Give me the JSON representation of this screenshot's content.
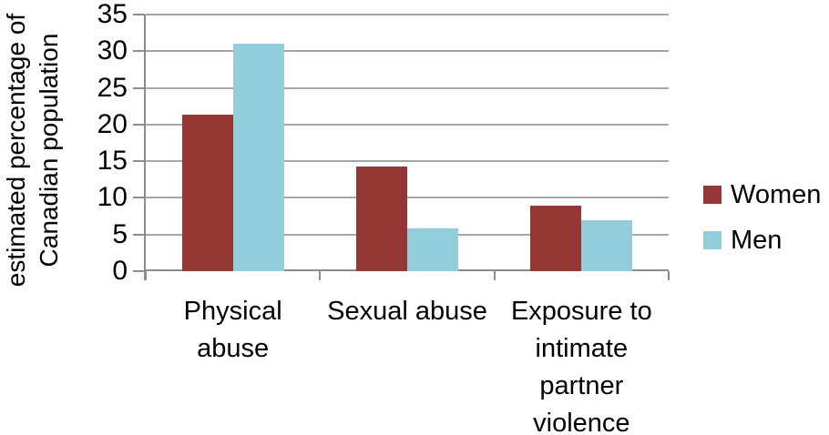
{
  "chart_data": {
    "type": "bar",
    "title": "",
    "categories": [
      "Physical abuse",
      "Sexual abuse",
      "Exposure to intimate partner violence"
    ],
    "category_label_lines": [
      [
        "Physical",
        "abuse"
      ],
      [
        "Sexual abuse"
      ],
      [
        "Exposure to",
        "intimate",
        "partner",
        "violence"
      ]
    ],
    "series": [
      {
        "name": "Women",
        "color": "#953735",
        "values": [
          21.3,
          14.3,
          8.9
        ]
      },
      {
        "name": "Men",
        "color": "#92cddc",
        "values": [
          31.0,
          5.8,
          6.9
        ]
      }
    ],
    "xlabel": "",
    "ylabel": "estimated percentage of Canadian population",
    "ylabel_lines": [
      "estimated percentage of",
      "Canadian population"
    ],
    "ylim": [
      0,
      35
    ],
    "ytick_step": 5,
    "yticks": [
      35,
      30,
      25,
      20,
      15,
      10,
      5,
      0
    ],
    "grid": true,
    "legend_position": "right"
  },
  "colors": {
    "women_bar": "#953735",
    "men_bar": "#92cddc",
    "gridline": "#a6a6a6",
    "axis": "#8c8c8c",
    "text": "#000000",
    "background": "#ffffff"
  }
}
